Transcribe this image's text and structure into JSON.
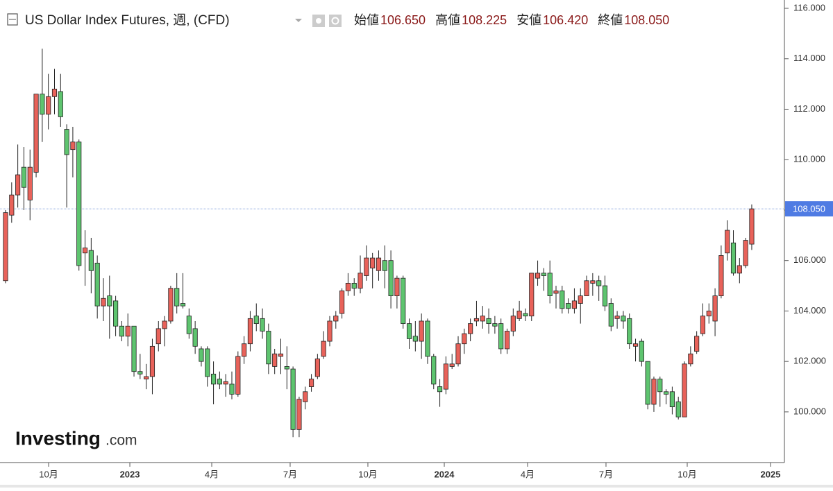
{
  "chart_data": {
    "type": "candlestick",
    "title": "US Dollar Index Futures, 週, (CFD)",
    "ohlc_header": [
      {
        "label": "始値",
        "value": "106.650"
      },
      {
        "label": "高値",
        "value": "108.225"
      },
      {
        "label": "安値",
        "value": "106.420"
      },
      {
        "label": "終値",
        "value": "108.050"
      }
    ],
    "watermark": {
      "brand": "Investing",
      "suffix": ".com"
    },
    "up_color": "#e8625a",
    "down_color": "#5ec46f",
    "grid": false,
    "categories": [
      null,
      null,
      null,
      null,
      null,
      null,
      null,
      null,
      null,
      null,
      null,
      null,
      null,
      null,
      null,
      null,
      null,
      null,
      null,
      null,
      null,
      null,
      null,
      null,
      null,
      null,
      null,
      null,
      null,
      null,
      null,
      null,
      null,
      null,
      null,
      null,
      null,
      null,
      null,
      null,
      null,
      null,
      null,
      null,
      null,
      null,
      null,
      null,
      null,
      null,
      null,
      null,
      null,
      null,
      null,
      null,
      null,
      null,
      null,
      null,
      null,
      null,
      null,
      null,
      null,
      null,
      null,
      null,
      null,
      null,
      null,
      null,
      null,
      null,
      null,
      null,
      null,
      null,
      null,
      null,
      null,
      null,
      null,
      null,
      null,
      null,
      null,
      null,
      null,
      null,
      null,
      null,
      null,
      null,
      null,
      null,
      null,
      null,
      null,
      null,
      null,
      null,
      null,
      null,
      null,
      null,
      null,
      null,
      null,
      null,
      null,
      null,
      null,
      null,
      null,
      null,
      null,
      null,
      null,
      null,
      null,
      null,
      null
    ],
    "series": {
      "open": [
        105.2,
        107.8,
        108.6,
        109.7,
        108.4,
        109.5,
        112.6,
        111.8,
        112.5,
        112.7,
        111.2,
        110.4,
        110.7,
        106.3,
        106.4,
        105.9,
        104.2,
        104.6,
        104.4,
        103.4,
        103.0,
        103.4,
        101.6,
        101.3,
        101.4,
        102.7,
        103.3,
        103.6,
        104.9,
        104.3,
        103.8,
        103.3,
        102.5,
        102.5,
        101.5,
        101.3,
        101.1,
        101.1,
        100.7,
        102.2,
        102.7,
        103.8,
        103.7,
        103.2,
        101.8,
        102.2,
        101.8,
        101.7,
        99.3,
        100.4,
        101.0,
        101.4,
        102.2,
        102.8,
        103.6,
        103.9,
        104.8,
        105.1,
        104.9,
        105.4,
        105.7,
        105.6,
        106.0,
        106.0,
        104.6,
        105.3,
        103.5,
        103.0,
        102.8,
        103.6,
        102.2,
        101.0,
        100.9,
        101.8,
        101.9,
        102.7,
        103.1,
        103.6,
        103.6,
        103.7,
        103.5,
        103.5,
        102.5,
        103.2,
        103.7,
        103.9,
        103.8,
        105.3,
        105.5,
        105.5,
        104.7,
        104.8,
        104.3,
        104.1,
        104.3,
        104.6,
        105.1,
        105.2,
        105.0,
        104.3,
        103.7,
        103.8,
        103.7,
        102.6,
        102.8,
        102.0,
        100.3,
        101.3,
        100.8,
        100.8,
        100.4,
        99.8,
        101.9,
        102.4,
        103.1,
        103.8,
        103.6,
        104.6,
        106.3,
        106.7,
        105.5,
        105.8,
        106.65
      ],
      "high": [
        108.0,
        109.1,
        110.6,
        110.5,
        110.4,
        112.6,
        114.4,
        113.4,
        113.6,
        113.4,
        111.4,
        111.3,
        110.8,
        107.2,
        106.9,
        106.2,
        105.3,
        105.4,
        104.6,
        103.6,
        103.9,
        103.4,
        102.3,
        101.9,
        102.9,
        103.6,
        103.8,
        105.0,
        105.5,
        105.5,
        104.1,
        103.6,
        102.6,
        102.6,
        102.0,
        101.6,
        101.5,
        101.6,
        102.4,
        103.0,
        104.0,
        104.3,
        104.1,
        103.5,
        102.5,
        102.9,
        102.6,
        101.8,
        100.6,
        101.0,
        101.5,
        102.3,
        103.2,
        103.8,
        104.0,
        104.9,
        105.5,
        105.3,
        106.2,
        106.6,
        106.3,
        106.4,
        106.6,
        106.4,
        105.4,
        105.4,
        103.7,
        103.6,
        103.9,
        103.7,
        102.3,
        101.3,
        102.2,
        102.3,
        103.0,
        103.3,
        103.7,
        104.4,
        104.2,
        104.1,
        103.8,
        103.7,
        103.3,
        104.1,
        104.4,
        104.1,
        105.5,
        106.0,
        105.7,
        106.0,
        105.0,
        105.0,
        104.5,
        104.9,
        104.9,
        105.4,
        105.5,
        105.4,
        105.4,
        104.5,
        104.0,
        104.0,
        103.9,
        102.9,
        102.9,
        102.0,
        101.4,
        101.4,
        100.9,
        101.0,
        100.6,
        102.0,
        102.6,
        103.2,
        104.3,
        104.3,
        104.9,
        106.6,
        107.6,
        107.2,
        106.1,
        106.9,
        108.225
      ],
      "low": [
        105.1,
        107.5,
        108.1,
        108.0,
        107.6,
        109.3,
        110.7,
        111.2,
        111.8,
        111.3,
        108.1,
        109.3,
        105.6,
        105.0,
        104.7,
        103.7,
        103.6,
        102.9,
        103.0,
        102.8,
        102.6,
        101.4,
        101.3,
        100.9,
        100.7,
        102.4,
        102.6,
        103.5,
        103.9,
        104.1,
        102.9,
        102.3,
        101.8,
        101.0,
        100.3,
        100.9,
        100.6,
        100.5,
        100.6,
        101.9,
        102.4,
        103.2,
        102.9,
        101.5,
        101.5,
        101.5,
        100.9,
        99.0,
        99.0,
        100.1,
        100.8,
        101.3,
        102.1,
        102.6,
        103.3,
        103.7,
        104.6,
        104.6,
        104.7,
        105.2,
        104.9,
        105.2,
        104.9,
        104.1,
        104.1,
        103.3,
        102.5,
        102.4,
        102.1,
        101.9,
        100.9,
        100.2,
        100.7,
        101.7,
        101.8,
        102.3,
        102.8,
        103.4,
        103.3,
        103.1,
        103.1,
        102.3,
        102.3,
        103.0,
        103.6,
        103.6,
        103.6,
        105.0,
        104.8,
        104.3,
        104.1,
        103.9,
        103.9,
        103.9,
        103.5,
        104.6,
        104.6,
        104.4,
        104.0,
        103.2,
        103.3,
        103.3,
        102.5,
        102.0,
        101.8,
        100.1,
        100.0,
        100.2,
        100.3,
        99.9,
        99.7,
        99.8,
        101.8,
        102.3,
        103.0,
        103.5,
        103.0,
        104.5,
        106.0,
        105.4,
        105.1,
        105.7,
        106.42
      ],
      "close": [
        107.9,
        108.6,
        109.4,
        108.9,
        109.7,
        112.6,
        111.8,
        112.5,
        112.8,
        111.7,
        110.2,
        110.7,
        105.8,
        106.5,
        105.6,
        104.2,
        104.5,
        104.2,
        103.4,
        103.0,
        103.4,
        101.6,
        101.5,
        101.4,
        102.6,
        103.3,
        103.6,
        104.9,
        104.2,
        104.2,
        103.1,
        102.6,
        102.0,
        101.4,
        101.1,
        101.1,
        101.2,
        100.7,
        102.2,
        102.7,
        103.7,
        103.5,
        103.2,
        101.9,
        102.3,
        102.3,
        101.7,
        99.3,
        100.5,
        100.8,
        101.3,
        102.1,
        102.8,
        103.6,
        103.8,
        104.8,
        105.1,
        104.9,
        105.5,
        106.1,
        106.1,
        106.1,
        105.6,
        104.6,
        105.3,
        103.5,
        102.9,
        102.8,
        103.6,
        102.2,
        101.1,
        100.8,
        101.9,
        101.9,
        102.7,
        103.1,
        103.5,
        103.7,
        103.8,
        103.5,
        103.4,
        102.5,
        103.2,
        103.8,
        104.0,
        103.8,
        105.5,
        105.5,
        105.4,
        104.6,
        104.8,
        104.1,
        104.1,
        104.4,
        104.6,
        105.2,
        105.2,
        105.0,
        104.2,
        103.4,
        103.8,
        103.6,
        102.7,
        102.7,
        102.0,
        100.3,
        101.3,
        100.8,
        100.7,
        100.2,
        99.8,
        101.9,
        102.3,
        103.0,
        103.8,
        104.0,
        104.6,
        106.2,
        107.2,
        105.5,
        105.8,
        106.8,
        108.05
      ]
    },
    "xlim": [
      -0.908,
      127.34
    ],
    "xticks": [
      {
        "value": 7.04,
        "label": "10月"
      },
      {
        "value": 20.32,
        "label": "2023"
      },
      {
        "value": 33.71,
        "label": "4月"
      },
      {
        "value": 46.53,
        "label": "7月"
      },
      {
        "value": 59.24,
        "label": "10月"
      },
      {
        "value": 71.73,
        "label": "2024"
      },
      {
        "value": 85.35,
        "label": "4月"
      },
      {
        "value": 98.17,
        "label": "7月"
      },
      {
        "value": 111.45,
        "label": "10月"
      },
      {
        "value": 125.07,
        "label": "2025"
      }
    ],
    "ylim": [
      97.99,
      116.33
    ],
    "yticks": [
      {
        "value": 100,
        "label": "100.000"
      },
      {
        "value": 102,
        "label": "102.000"
      },
      {
        "value": 104,
        "label": "104.000"
      },
      {
        "value": 106,
        "label": "106.000"
      },
      {
        "value": 108,
        "label": "108.000"
      },
      {
        "value": 110,
        "label": "110.000"
      },
      {
        "value": 112,
        "label": "112.000"
      },
      {
        "value": 114,
        "label": "114.000"
      },
      {
        "value": 116,
        "label": "116.000"
      }
    ],
    "last_price": {
      "value": 108.05,
      "label": "108.050"
    }
  }
}
